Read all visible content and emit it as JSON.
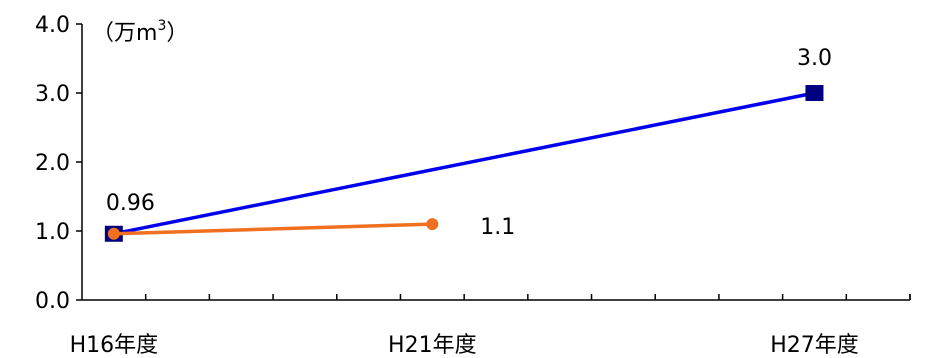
{
  "chart_data": {
    "type": "line",
    "unit_label": "（万m",
    "unit_sup": "3",
    "unit_close": "）",
    "y_ticks": [
      "4.0",
      "3.0",
      "2.0",
      "1.0",
      "0.0"
    ],
    "y_tick_values": [
      4,
      3,
      2,
      1,
      0
    ],
    "ylim": [
      0,
      4
    ],
    "x_tick_labels": [
      "H16年度",
      "H21年度",
      "H27年度"
    ],
    "x_tick_values": [
      16,
      21,
      27
    ],
    "xlim": [
      15.5,
      28.5
    ],
    "grid": false,
    "series": [
      {
        "color": "#0000ee",
        "marker": "square",
        "marker_color": "#000080",
        "points": [
          {
            "x": 16,
            "y": 0.96
          },
          {
            "x": 27,
            "y": 3.0,
            "label": "3.0"
          }
        ]
      },
      {
        "color": "#f07020",
        "marker": "circle",
        "marker_color": "#f07020",
        "points": [
          {
            "x": 16,
            "y": 0.96,
            "label": "0.96"
          },
          {
            "x": 21,
            "y": 1.1,
            "label": "1.1"
          }
        ]
      }
    ]
  }
}
